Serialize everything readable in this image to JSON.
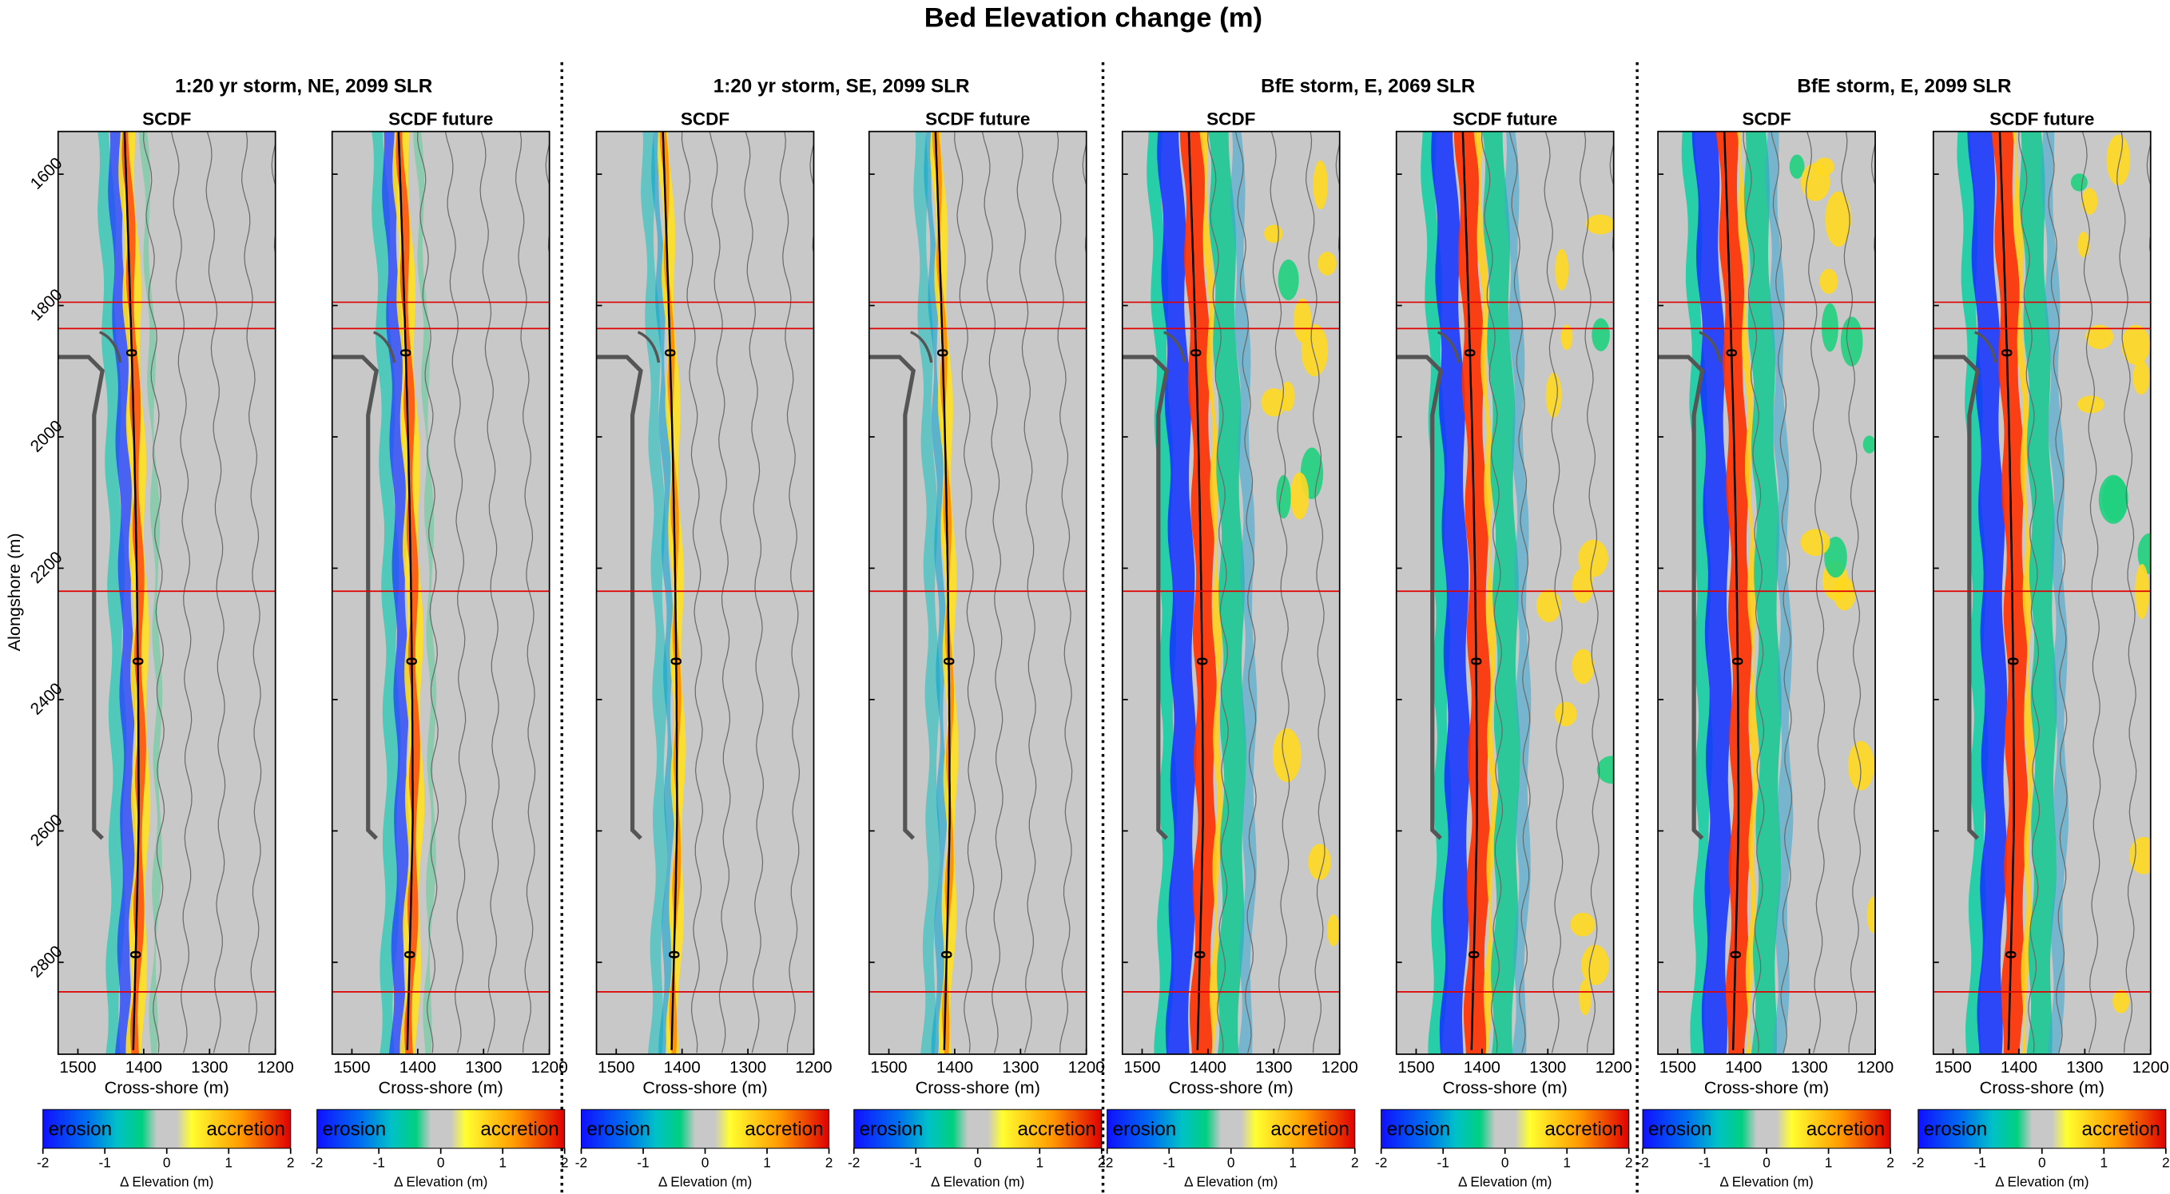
{
  "title": "Bed Elevation change (m)",
  "panels": [
    {
      "title": "1:20 yr storm, NE, 2099 SLR",
      "subplots": [
        "SCDF",
        "SCDF future"
      ]
    },
    {
      "title": "1:20 yr storm, SE, 2099 SLR",
      "subplots": [
        "SCDF",
        "SCDF future"
      ]
    },
    {
      "title": "BfE storm, E, 2069 SLR",
      "subplots": [
        "SCDF",
        "SCDF future"
      ]
    },
    {
      "title": "BfE storm, E, 2099 SLR",
      "subplots": [
        "SCDF",
        "SCDF future"
      ]
    }
  ],
  "axes": {
    "ylabel": "Alongshore (m)",
    "xlabel": "Cross-shore (m)",
    "ylim": [
      1535,
      2940
    ],
    "yticks": [
      1600,
      1800,
      2000,
      2200,
      2400,
      2600,
      2800
    ],
    "xlim": [
      1530,
      1200
    ],
    "xticks": [
      1500,
      1400,
      1300,
      1200
    ],
    "red_lines": [
      1795,
      1835,
      2235,
      2845
    ],
    "shoreline_contour": 0
  },
  "colorbar": {
    "low_label": "erosion",
    "high_label": "accretion",
    "lim": [
      -2,
      2
    ],
    "ticks": [
      -2,
      -1,
      0,
      1,
      2
    ],
    "label": "Δ Elevation (m)"
  }
}
